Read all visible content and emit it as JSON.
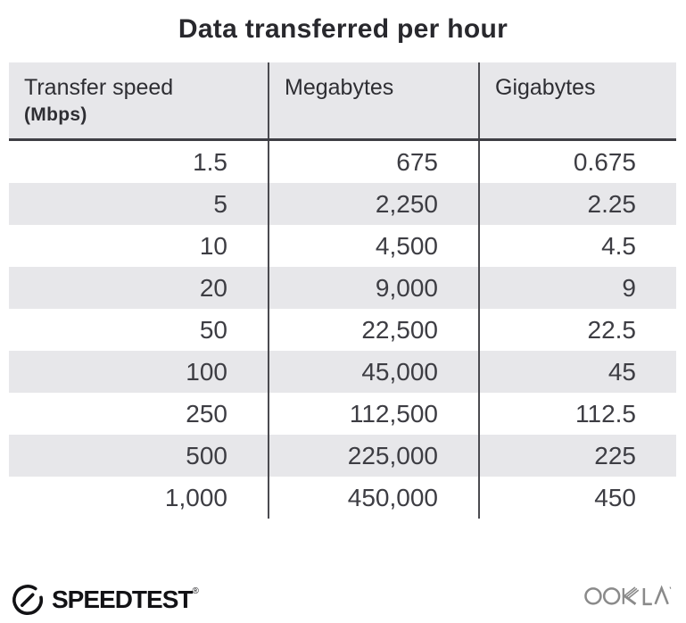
{
  "title": "Data transferred per hour",
  "table": {
    "columns": [
      {
        "label": "Transfer speed",
        "sublabel": "(Mbps)"
      },
      {
        "label": "Megabytes",
        "sublabel": ""
      },
      {
        "label": "Gigabytes",
        "sublabel": ""
      }
    ],
    "rows": [
      [
        "1.5",
        "675",
        "0.675"
      ],
      [
        "5",
        "2,250",
        "2.25"
      ],
      [
        "10",
        "4,500",
        "4.5"
      ],
      [
        "20",
        "9,000",
        "9"
      ],
      [
        "50",
        "22,500",
        "22.5"
      ],
      [
        "100",
        "45,000",
        "45"
      ],
      [
        "250",
        "112,500",
        "112.5"
      ],
      [
        "500",
        "225,000",
        "225"
      ],
      [
        "1,000",
        "450,000",
        "450"
      ]
    ]
  },
  "chart_data": {
    "type": "table",
    "title": "Data transferred per hour",
    "columns": [
      "Transfer speed (Mbps)",
      "Megabytes",
      "Gigabytes"
    ],
    "rows": [
      [
        1.5,
        675,
        0.675
      ],
      [
        5,
        2250,
        2.25
      ],
      [
        10,
        4500,
        4.5
      ],
      [
        20,
        9000,
        9
      ],
      [
        50,
        22500,
        22.5
      ],
      [
        100,
        45000,
        45
      ],
      [
        250,
        112500,
        112.5
      ],
      [
        500,
        225000,
        225
      ],
      [
        1000,
        450000,
        450
      ]
    ],
    "layout": {
      "header_background": "#e7e7ea",
      "row_stripe": "#e7e7ea",
      "striped": true,
      "column_dividers": true
    }
  },
  "footer": {
    "speedtest_label": "SPEEDTEST",
    "speedtest_trademark": "®",
    "ookla_label": "OOKLA"
  },
  "colors": {
    "stripe_gray": "#e7e7ea",
    "divider": "#4b4b50",
    "header_underline": "#3e3e44",
    "title_text": "#28282d",
    "data_text": "#3d3d43",
    "speedtest_black": "#121215",
    "ookla_gray": "#8a8a8a"
  }
}
